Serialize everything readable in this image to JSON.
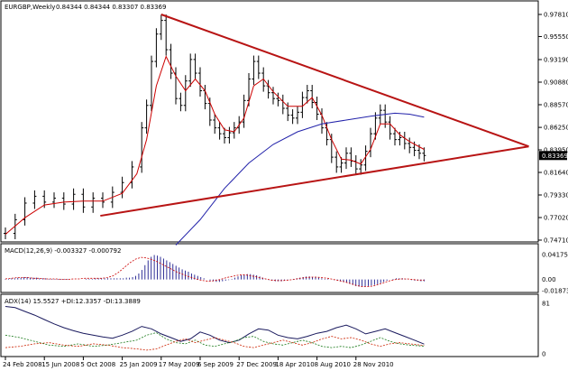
{
  "chart_data": {
    "type": "line",
    "price_panel": {
      "header": {
        "symbol": "EURGBP,Weekly",
        "ohlc": "0.84344 0.84344 0.83307 0.83369"
      },
      "y_ticks": [
        "0.97810",
        "0.95550",
        "0.93190",
        "0.90880",
        "0.88570",
        "0.86250",
        "0.83950",
        "0.81640",
        "0.79330",
        "0.77020",
        "0.74710"
      ],
      "ylim": [
        0.7471,
        0.9781
      ],
      "current_price": "0.83369",
      "close": [
        {
          "t": 0,
          "v": 0.754
        },
        {
          "t": 4,
          "v": 0.768
        },
        {
          "t": 8,
          "v": 0.785
        },
        {
          "t": 12,
          "v": 0.792
        },
        {
          "t": 16,
          "v": 0.786
        },
        {
          "t": 20,
          "v": 0.79
        },
        {
          "t": 24,
          "v": 0.784
        },
        {
          "t": 28,
          "v": 0.794
        },
        {
          "t": 32,
          "v": 0.781
        },
        {
          "t": 36,
          "v": 0.79
        },
        {
          "t": 40,
          "v": 0.786
        },
        {
          "t": 44,
          "v": 0.796
        },
        {
          "t": 48,
          "v": 0.806
        },
        {
          "t": 52,
          "v": 0.822
        },
        {
          "t": 56,
          "v": 0.862
        },
        {
          "t": 58,
          "v": 0.885
        },
        {
          "t": 60,
          "v": 0.93
        },
        {
          "t": 62,
          "v": 0.958
        },
        {
          "t": 64,
          "v": 0.972
        },
        {
          "t": 66,
          "v": 0.942
        },
        {
          "t": 68,
          "v": 0.918
        },
        {
          "t": 70,
          "v": 0.892
        },
        {
          "t": 72,
          "v": 0.885
        },
        {
          "t": 74,
          "v": 0.91
        },
        {
          "t": 76,
          "v": 0.932
        },
        {
          "t": 78,
          "v": 0.918
        },
        {
          "t": 80,
          "v": 0.9
        },
        {
          "t": 82,
          "v": 0.887
        },
        {
          "t": 84,
          "v": 0.87
        },
        {
          "t": 86,
          "v": 0.862
        },
        {
          "t": 88,
          "v": 0.856
        },
        {
          "t": 90,
          "v": 0.852
        },
        {
          "t": 92,
          "v": 0.857
        },
        {
          "t": 94,
          "v": 0.862
        },
        {
          "t": 96,
          "v": 0.868
        },
        {
          "t": 98,
          "v": 0.89
        },
        {
          "t": 100,
          "v": 0.912
        },
        {
          "t": 102,
          "v": 0.93
        },
        {
          "t": 104,
          "v": 0.918
        },
        {
          "t": 106,
          "v": 0.905
        },
        {
          "t": 108,
          "v": 0.898
        },
        {
          "t": 110,
          "v": 0.892
        },
        {
          "t": 112,
          "v": 0.89
        },
        {
          "t": 114,
          "v": 0.882
        },
        {
          "t": 116,
          "v": 0.875
        },
        {
          "t": 118,
          "v": 0.872
        },
        {
          "t": 120,
          "v": 0.878
        },
        {
          "t": 122,
          "v": 0.893
        },
        {
          "t": 124,
          "v": 0.9
        },
        {
          "t": 126,
          "v": 0.888
        },
        {
          "t": 128,
          "v": 0.876
        },
        {
          "t": 130,
          "v": 0.862
        },
        {
          "t": 132,
          "v": 0.85
        },
        {
          "t": 134,
          "v": 0.832
        },
        {
          "t": 136,
          "v": 0.822
        },
        {
          "t": 138,
          "v": 0.826
        },
        {
          "t": 140,
          "v": 0.836
        },
        {
          "t": 142,
          "v": 0.828
        },
        {
          "t": 144,
          "v": 0.82
        },
        {
          "t": 146,
          "v": 0.824
        },
        {
          "t": 148,
          "v": 0.838
        },
        {
          "t": 150,
          "v": 0.856
        },
        {
          "t": 152,
          "v": 0.872
        },
        {
          "t": 154,
          "v": 0.88
        },
        {
          "t": 156,
          "v": 0.868
        },
        {
          "t": 158,
          "v": 0.856
        },
        {
          "t": 160,
          "v": 0.85
        },
        {
          "t": 162,
          "v": 0.852
        },
        {
          "t": 164,
          "v": 0.846
        },
        {
          "t": 166,
          "v": 0.842
        },
        {
          "t": 168,
          "v": 0.839
        },
        {
          "t": 170,
          "v": 0.836
        },
        {
          "t": 172,
          "v": 0.8337
        }
      ],
      "ma_short": [
        {
          "t": 0,
          "v": 0.753
        },
        {
          "t": 8,
          "v": 0.77
        },
        {
          "t": 16,
          "v": 0.783
        },
        {
          "t": 24,
          "v": 0.786
        },
        {
          "t": 32,
          "v": 0.787
        },
        {
          "t": 40,
          "v": 0.787
        },
        {
          "t": 48,
          "v": 0.795
        },
        {
          "t": 54,
          "v": 0.815
        },
        {
          "t": 58,
          "v": 0.85
        },
        {
          "t": 62,
          "v": 0.905
        },
        {
          "t": 66,
          "v": 0.935
        },
        {
          "t": 70,
          "v": 0.915
        },
        {
          "t": 74,
          "v": 0.9
        },
        {
          "t": 78,
          "v": 0.912
        },
        {
          "t": 82,
          "v": 0.9
        },
        {
          "t": 86,
          "v": 0.876
        },
        {
          "t": 90,
          "v": 0.86
        },
        {
          "t": 94,
          "v": 0.858
        },
        {
          "t": 98,
          "v": 0.872
        },
        {
          "t": 102,
          "v": 0.905
        },
        {
          "t": 106,
          "v": 0.912
        },
        {
          "t": 110,
          "v": 0.899
        },
        {
          "t": 116,
          "v": 0.884
        },
        {
          "t": 122,
          "v": 0.884
        },
        {
          "t": 126,
          "v": 0.893
        },
        {
          "t": 130,
          "v": 0.875
        },
        {
          "t": 134,
          "v": 0.85
        },
        {
          "t": 138,
          "v": 0.83
        },
        {
          "t": 142,
          "v": 0.829
        },
        {
          "t": 146,
          "v": 0.825
        },
        {
          "t": 150,
          "v": 0.84
        },
        {
          "t": 154,
          "v": 0.866
        },
        {
          "t": 158,
          "v": 0.866
        },
        {
          "t": 162,
          "v": 0.855
        },
        {
          "t": 166,
          "v": 0.848
        },
        {
          "t": 172,
          "v": 0.84
        }
      ],
      "ma_long": [
        {
          "t": 70,
          "v": 0.742
        },
        {
          "t": 80,
          "v": 0.768
        },
        {
          "t": 90,
          "v": 0.8
        },
        {
          "t": 100,
          "v": 0.826
        },
        {
          "t": 110,
          "v": 0.845
        },
        {
          "t": 120,
          "v": 0.858
        },
        {
          "t": 130,
          "v": 0.866
        },
        {
          "t": 140,
          "v": 0.87
        },
        {
          "t": 150,
          "v": 0.874
        },
        {
          "t": 160,
          "v": 0.877
        },
        {
          "t": 166,
          "v": 0.876
        },
        {
          "t": 172,
          "v": 0.873
        }
      ],
      "trendlines": [
        {
          "from": {
            "t": 64,
            "v": 0.9781
          },
          "to": {
            "t": 215,
            "v": 0.843
          }
        },
        {
          "from": {
            "t": 39,
            "v": 0.772
          },
          "to": {
            "t": 215,
            "v": 0.843
          }
        }
      ]
    },
    "macd_panel": {
      "label": "MACD(12,26,9) -0.003327 -0.000792",
      "y_ticks": [
        "0.041755",
        "0.00",
        "-0.018731"
      ],
      "ylim": [
        -0.018731,
        0.041755
      ],
      "histogram": [
        0.001,
        0.001,
        0.002,
        0.002,
        0.003,
        0.003,
        0.004,
        0.004,
        0.003,
        0.003,
        0.003,
        0.002,
        0.002,
        0.002,
        0.001,
        0.001,
        0.001,
        0.001,
        0.001,
        0.001,
        0.001,
        0.0,
        0.0,
        0.0,
        0.0,
        0.0,
        0.001,
        0.001,
        0.001,
        0.002,
        0.002,
        0.002,
        0.002,
        0.002,
        0.002,
        0.002,
        0.002,
        0.002,
        0.002,
        0.003,
        0.003,
        0.004,
        0.006,
        0.01,
        0.016,
        0.024,
        0.032,
        0.038,
        0.041,
        0.04,
        0.038,
        0.035,
        0.032,
        0.029,
        0.026,
        0.023,
        0.02,
        0.017,
        0.015,
        0.013,
        0.01,
        0.008,
        0.006,
        0.004,
        0.002,
        0.0,
        -0.002,
        -0.003,
        -0.004,
        -0.004,
        -0.003,
        -0.002,
        -0.001,
        0.001,
        0.003,
        0.005,
        0.007,
        0.008,
        0.009,
        0.009,
        0.008,
        0.007,
        0.005,
        0.003,
        0.001,
        -0.001,
        -0.002,
        -0.003,
        -0.003,
        -0.003,
        -0.002,
        -0.001,
        0.0,
        0.001,
        0.002,
        0.003,
        0.004,
        0.005,
        0.005,
        0.004,
        0.004,
        0.003,
        0.002,
        0.001,
        0.001,
        0.0,
        -0.001,
        -0.002,
        -0.003,
        -0.004,
        -0.005,
        -0.007,
        -0.009,
        -0.011,
        -0.012,
        -0.012,
        -0.012,
        -0.011,
        -0.01,
        -0.009,
        -0.008,
        -0.006,
        -0.004,
        -0.002,
        0.0,
        0.001,
        0.002,
        0.002,
        0.002,
        0.001,
        0.0,
        -0.001,
        -0.002,
        -0.002,
        -0.003,
        -0.003
      ],
      "signal": [
        0.001,
        0.002,
        0.003,
        0.003,
        0.003,
        0.002,
        0.002,
        0.001,
        0.001,
        0.001,
        0.0,
        0.0,
        0.001,
        0.001,
        0.002,
        0.002,
        0.002,
        0.002,
        0.003,
        0.006,
        0.012,
        0.02,
        0.028,
        0.034,
        0.037,
        0.036,
        0.033,
        0.029,
        0.024,
        0.019,
        0.014,
        0.01,
        0.006,
        0.003,
        0.0,
        -0.002,
        -0.003,
        -0.002,
        0.0,
        0.003,
        0.005,
        0.007,
        0.008,
        0.007,
        0.005,
        0.003,
        0.001,
        -0.001,
        -0.002,
        -0.002,
        -0.001,
        0.0,
        0.002,
        0.003,
        0.004,
        0.004,
        0.003,
        0.002,
        0.0,
        -0.002,
        -0.004,
        -0.007,
        -0.01,
        -0.012,
        -0.012,
        -0.011,
        -0.008,
        -0.005,
        -0.002,
        0.0,
        0.001,
        0.001,
        0.0,
        -0.001,
        -0.001
      ]
    },
    "adx_panel": {
      "label": "ADX(14) 15.5527 +DI:12.3357 -DI:13.3889",
      "y_ticks": [
        "81",
        "0"
      ],
      "ylim": [
        0,
        81
      ],
      "adx": [
        {
          "t": 0,
          "v": 76
        },
        {
          "t": 4,
          "v": 74
        },
        {
          "t": 8,
          "v": 68
        },
        {
          "t": 12,
          "v": 62
        },
        {
          "t": 16,
          "v": 55
        },
        {
          "t": 20,
          "v": 48
        },
        {
          "t": 24,
          "v": 42
        },
        {
          "t": 28,
          "v": 37
        },
        {
          "t": 32,
          "v": 33
        },
        {
          "t": 36,
          "v": 30
        },
        {
          "t": 40,
          "v": 27
        },
        {
          "t": 44,
          "v": 25
        },
        {
          "t": 48,
          "v": 30
        },
        {
          "t": 52,
          "v": 36
        },
        {
          "t": 56,
          "v": 44
        },
        {
          "t": 60,
          "v": 40
        },
        {
          "t": 64,
          "v": 32
        },
        {
          "t": 68,
          "v": 26
        },
        {
          "t": 72,
          "v": 20
        },
        {
          "t": 76,
          "v": 24
        },
        {
          "t": 80,
          "v": 35
        },
        {
          "t": 84,
          "v": 30
        },
        {
          "t": 88,
          "v": 22
        },
        {
          "t": 92,
          "v": 18
        },
        {
          "t": 96,
          "v": 22
        },
        {
          "t": 100,
          "v": 32
        },
        {
          "t": 104,
          "v": 40
        },
        {
          "t": 108,
          "v": 38
        },
        {
          "t": 112,
          "v": 30
        },
        {
          "t": 116,
          "v": 26
        },
        {
          "t": 120,
          "v": 24
        },
        {
          "t": 124,
          "v": 28
        },
        {
          "t": 128,
          "v": 33
        },
        {
          "t": 132,
          "v": 36
        },
        {
          "t": 136,
          "v": 42
        },
        {
          "t": 140,
          "v": 46
        },
        {
          "t": 144,
          "v": 40
        },
        {
          "t": 148,
          "v": 32
        },
        {
          "t": 152,
          "v": 36
        },
        {
          "t": 156,
          "v": 40
        },
        {
          "t": 160,
          "v": 34
        },
        {
          "t": 164,
          "v": 28
        },
        {
          "t": 168,
          "v": 22
        },
        {
          "t": 172,
          "v": 15.5527
        }
      ],
      "plus_di": [
        {
          "t": 0,
          "v": 30
        },
        {
          "t": 6,
          "v": 26
        },
        {
          "t": 12,
          "v": 20
        },
        {
          "t": 18,
          "v": 14
        },
        {
          "t": 24,
          "v": 12
        },
        {
          "t": 30,
          "v": 16
        },
        {
          "t": 36,
          "v": 12
        },
        {
          "t": 42,
          "v": 14
        },
        {
          "t": 48,
          "v": 18
        },
        {
          "t": 54,
          "v": 22
        },
        {
          "t": 58,
          "v": 30
        },
        {
          "t": 62,
          "v": 34
        },
        {
          "t": 66,
          "v": 24
        },
        {
          "t": 70,
          "v": 18
        },
        {
          "t": 74,
          "v": 16
        },
        {
          "t": 78,
          "v": 22
        },
        {
          "t": 82,
          "v": 14
        },
        {
          "t": 86,
          "v": 12
        },
        {
          "t": 90,
          "v": 16
        },
        {
          "t": 94,
          "v": 20
        },
        {
          "t": 98,
          "v": 26
        },
        {
          "t": 102,
          "v": 28
        },
        {
          "t": 106,
          "v": 20
        },
        {
          "t": 110,
          "v": 16
        },
        {
          "t": 114,
          "v": 14
        },
        {
          "t": 118,
          "v": 18
        },
        {
          "t": 122,
          "v": 22
        },
        {
          "t": 126,
          "v": 18
        },
        {
          "t": 130,
          "v": 12
        },
        {
          "t": 134,
          "v": 10
        },
        {
          "t": 138,
          "v": 12
        },
        {
          "t": 142,
          "v": 10
        },
        {
          "t": 146,
          "v": 14
        },
        {
          "t": 150,
          "v": 20
        },
        {
          "t": 154,
          "v": 26
        },
        {
          "t": 158,
          "v": 20
        },
        {
          "t": 162,
          "v": 16
        },
        {
          "t": 166,
          "v": 14
        },
        {
          "t": 172,
          "v": 12.3357
        }
      ],
      "minus_di": [
        {
          "t": 0,
          "v": 10
        },
        {
          "t": 6,
          "v": 12
        },
        {
          "t": 12,
          "v": 16
        },
        {
          "t": 18,
          "v": 18
        },
        {
          "t": 24,
          "v": 14
        },
        {
          "t": 30,
          "v": 12
        },
        {
          "t": 36,
          "v": 16
        },
        {
          "t": 42,
          "v": 14
        },
        {
          "t": 48,
          "v": 10
        },
        {
          "t": 54,
          "v": 8
        },
        {
          "t": 58,
          "v": 6
        },
        {
          "t": 62,
          "v": 8
        },
        {
          "t": 66,
          "v": 14
        },
        {
          "t": 70,
          "v": 20
        },
        {
          "t": 74,
          "v": 24
        },
        {
          "t": 78,
          "v": 18
        },
        {
          "t": 82,
          "v": 22
        },
        {
          "t": 86,
          "v": 26
        },
        {
          "t": 90,
          "v": 22
        },
        {
          "t": 94,
          "v": 18
        },
        {
          "t": 98,
          "v": 12
        },
        {
          "t": 102,
          "v": 10
        },
        {
          "t": 106,
          "v": 14
        },
        {
          "t": 110,
          "v": 18
        },
        {
          "t": 114,
          "v": 22
        },
        {
          "t": 118,
          "v": 18
        },
        {
          "t": 122,
          "v": 14
        },
        {
          "t": 126,
          "v": 18
        },
        {
          "t": 130,
          "v": 24
        },
        {
          "t": 134,
          "v": 28
        },
        {
          "t": 138,
          "v": 24
        },
        {
          "t": 142,
          "v": 26
        },
        {
          "t": 146,
          "v": 22
        },
        {
          "t": 150,
          "v": 16
        },
        {
          "t": 154,
          "v": 12
        },
        {
          "t": 158,
          "v": 16
        },
        {
          "t": 162,
          "v": 18
        },
        {
          "t": 166,
          "v": 16
        },
        {
          "t": 172,
          "v": 13.3889
        }
      ]
    },
    "x_ticks": [
      "24 Feb 2008",
      "15 Jun 2008",
      "5 Oct 2008",
      "25 Jan 2009",
      "17 May 2009",
      "6 Sep 2009",
      "27 Dec 2009",
      "18 Apr 2010",
      "8 Aug 2010",
      "28 Nov 2010"
    ],
    "x_tick_weeks": [
      0,
      16,
      32,
      48,
      64,
      80,
      96,
      112,
      128,
      144
    ],
    "colors": {
      "price": "#000000",
      "ma_short": "#cc0000",
      "ma_long": "#2222aa",
      "trendline": "#b81414",
      "macd_hist": "#1a1a8c",
      "macd_signal": "#cc0000",
      "adx": "#1a1a5e",
      "plus_di": "#1a7a1a",
      "minus_di": "#cc2200",
      "price_label_bg": "#000000"
    }
  }
}
